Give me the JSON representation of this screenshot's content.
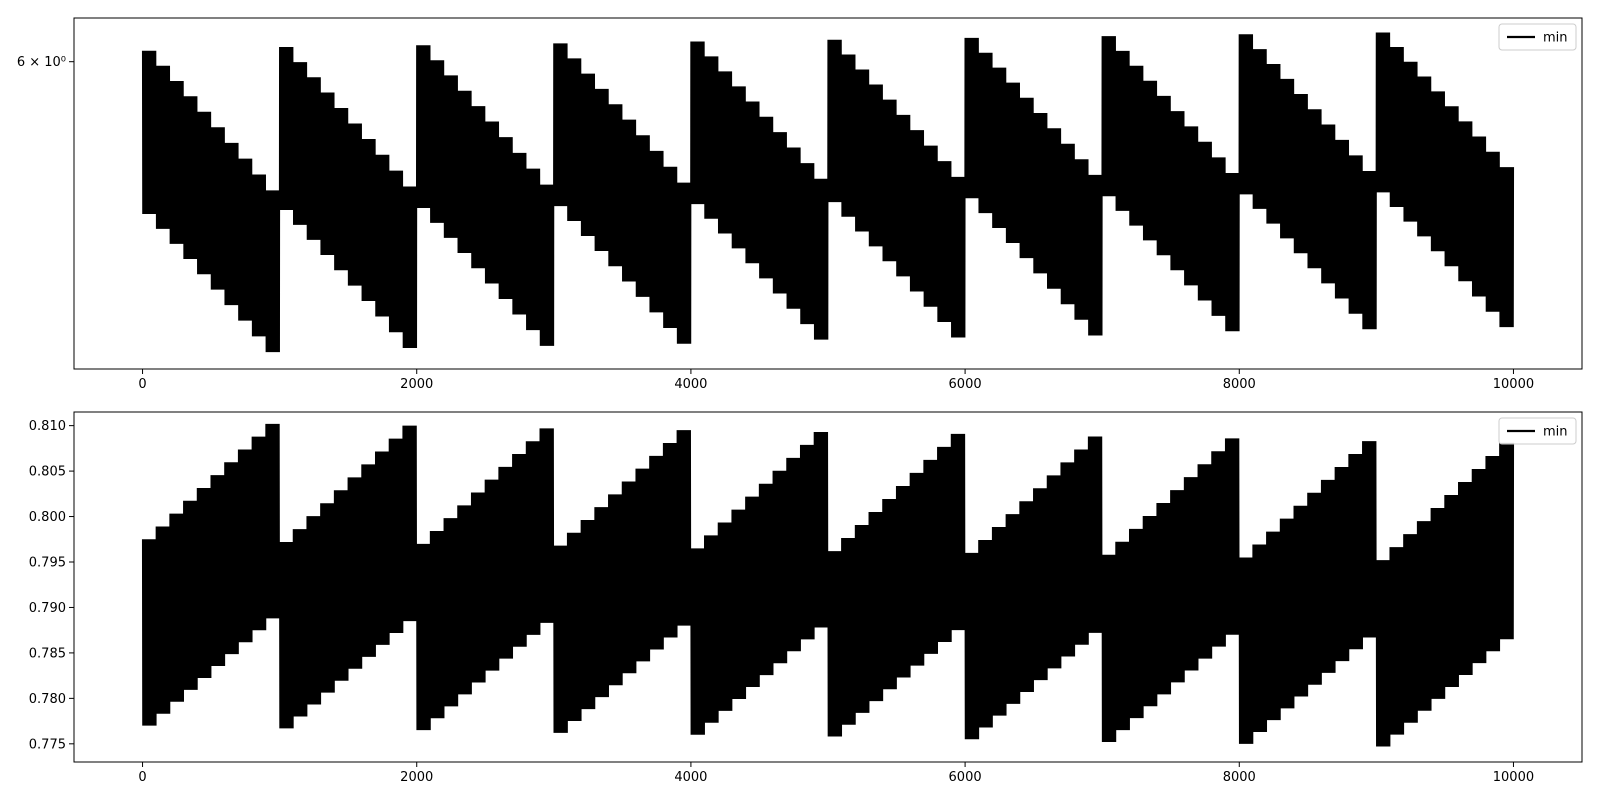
{
  "chart_data": [
    {
      "type": "line",
      "title": "",
      "xlabel": "",
      "ylabel": "",
      "yscale": "log",
      "xlim": [
        -500,
        10500
      ],
      "ylim": [
        5.22,
        6.12
      ],
      "grid": false,
      "legend_position": "top-right",
      "x_ticks": [
        0,
        2000,
        4000,
        6000,
        8000,
        10000
      ],
      "x_tick_labels": [
        "0",
        "2000",
        "4000",
        "6000",
        "8000",
        "10000"
      ],
      "y_ticks": [
        6
      ],
      "y_tick_labels": [
        "6 × 10⁰"
      ],
      "series": [
        {
          "name": "min",
          "color": "#000000",
          "period": 2,
          "cycle_length": 1000,
          "segment_length": 100,
          "upper_envelope_start": [
            [
              0,
              6.03
            ],
            [
              1000,
              6.04
            ],
            [
              2000,
              6.045
            ],
            [
              3000,
              6.05
            ],
            [
              4000,
              6.055
            ],
            [
              5000,
              6.06
            ],
            [
              6000,
              6.065
            ],
            [
              7000,
              6.07
            ],
            [
              8000,
              6.075
            ],
            [
              9000,
              6.08
            ]
          ],
          "upper_envelope_end": [
            [
              900,
              5.66
            ],
            [
              1900,
              5.67
            ],
            [
              2900,
              5.675
            ],
            [
              3900,
              5.68
            ],
            [
              4900,
              5.69
            ],
            [
              5900,
              5.695
            ],
            [
              6900,
              5.7
            ],
            [
              7900,
              5.705
            ],
            [
              8900,
              5.71
            ],
            [
              9900,
              5.72
            ]
          ],
          "lower_envelope_start": [
            [
              0,
              5.6
            ],
            [
              1000,
              5.61
            ],
            [
              2000,
              5.615
            ],
            [
              3000,
              5.62
            ],
            [
              4000,
              5.625
            ],
            [
              5000,
              5.63
            ],
            [
              6000,
              5.64
            ],
            [
              7000,
              5.645
            ],
            [
              8000,
              5.65
            ],
            [
              9000,
              5.655
            ]
          ],
          "lower_envelope_end": [
            [
              900,
              5.26
            ],
            [
              1900,
              5.27
            ],
            [
              2900,
              5.275
            ],
            [
              3900,
              5.28
            ],
            [
              4900,
              5.29
            ],
            [
              5900,
              5.295
            ],
            [
              6900,
              5.3
            ],
            [
              7900,
              5.31
            ],
            [
              8900,
              5.315
            ],
            [
              9900,
              5.32
            ]
          ]
        }
      ]
    },
    {
      "type": "line",
      "title": "",
      "xlabel": "",
      "ylabel": "",
      "yscale": "linear",
      "xlim": [
        -500,
        10500
      ],
      "ylim": [
        0.773,
        0.8115
      ],
      "grid": false,
      "legend_position": "top-right",
      "x_ticks": [
        0,
        2000,
        4000,
        6000,
        8000,
        10000
      ],
      "x_tick_labels": [
        "0",
        "2000",
        "4000",
        "6000",
        "8000",
        "10000"
      ],
      "y_ticks": [
        0.775,
        0.78,
        0.785,
        0.79,
        0.795,
        0.8,
        0.805,
        0.81
      ],
      "y_tick_labels": [
        "0.775",
        "0.780",
        "0.785",
        "0.790",
        "0.795",
        "0.800",
        "0.805",
        "0.810"
      ],
      "series": [
        {
          "name": "min",
          "color": "#000000",
          "period": 2,
          "cycle_length": 1000,
          "segment_length": 100,
          "upper_envelope_start": [
            [
              0,
              0.7975
            ],
            [
              1000,
              0.7972
            ],
            [
              2000,
              0.797
            ],
            [
              3000,
              0.7968
            ],
            [
              4000,
              0.7965
            ],
            [
              5000,
              0.7962
            ],
            [
              6000,
              0.796
            ],
            [
              7000,
              0.7958
            ],
            [
              8000,
              0.7955
            ],
            [
              9000,
              0.7952
            ]
          ],
          "upper_envelope_end": [
            [
              900,
              0.8102
            ],
            [
              1900,
              0.81
            ],
            [
              2900,
              0.8097
            ],
            [
              3900,
              0.8095
            ],
            [
              4900,
              0.8093
            ],
            [
              5900,
              0.8091
            ],
            [
              6900,
              0.8088
            ],
            [
              7900,
              0.8086
            ],
            [
              8900,
              0.8083
            ],
            [
              9900,
              0.8081
            ]
          ],
          "lower_envelope_start": [
            [
              0,
              0.777
            ],
            [
              1000,
              0.7767
            ],
            [
              2000,
              0.7765
            ],
            [
              3000,
              0.7762
            ],
            [
              4000,
              0.776
            ],
            [
              5000,
              0.7758
            ],
            [
              6000,
              0.7755
            ],
            [
              7000,
              0.7752
            ],
            [
              8000,
              0.775
            ],
            [
              9000,
              0.7747
            ]
          ],
          "lower_envelope_end": [
            [
              900,
              0.7888
            ],
            [
              1900,
              0.7885
            ],
            [
              2900,
              0.7883
            ],
            [
              3900,
              0.788
            ],
            [
              4900,
              0.7878
            ],
            [
              5900,
              0.7875
            ],
            [
              6900,
              0.7872
            ],
            [
              7900,
              0.787
            ],
            [
              8900,
              0.7867
            ],
            [
              9900,
              0.7865
            ]
          ]
        }
      ]
    }
  ]
}
